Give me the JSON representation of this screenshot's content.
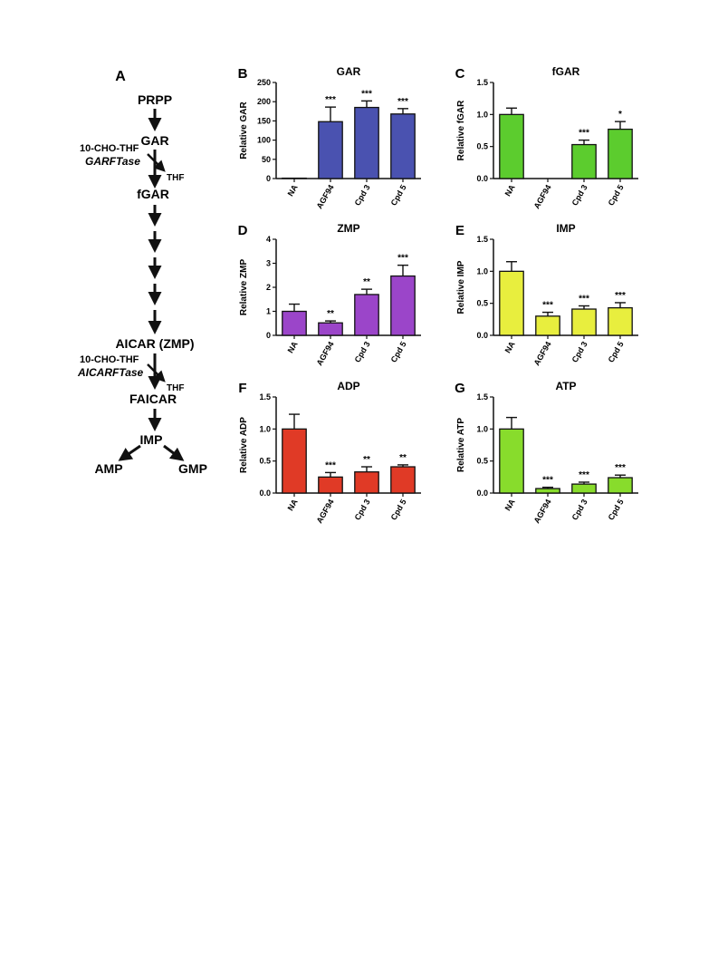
{
  "pathway": {
    "panel_label": "A",
    "nodes": [
      "PRPP",
      "GAR",
      "fGAR",
      "AICAR (ZMP)",
      "FAICAR",
      "IMP",
      "AMP",
      "GMP"
    ],
    "garftase_cofactor": "10-CHO-THF",
    "garftase_enzyme": "GARFTase",
    "garftase_product": "THF",
    "aicarftase_cofactor": "10-CHO-THF",
    "aicarftase_enzyme": "AICARFTase",
    "aicarftase_product": "THF"
  },
  "chart_data": [
    {
      "panel": "B",
      "type": "bar",
      "title": "GAR",
      "ylabel": "Relative GAR",
      "categories": [
        "NA",
        "AGF94",
        "Cpd 3",
        "Cpd 5"
      ],
      "values": [
        1,
        148,
        185,
        168
      ],
      "errors": [
        0,
        38,
        17,
        14
      ],
      "significance": [
        "",
        "***",
        "***",
        "***"
      ],
      "ylim": [
        0,
        250
      ],
      "yticks": [
        0,
        50,
        100,
        150,
        200,
        250
      ],
      "ytick_labels": [
        "0",
        "50",
        "100",
        "150",
        "200",
        "250"
      ],
      "color": "#4a52b0"
    },
    {
      "panel": "C",
      "type": "bar",
      "title": "fGAR",
      "ylabel": "Relative fGAR",
      "categories": [
        "NA",
        "AGF94",
        "Cpd 3",
        "Cpd 5"
      ],
      "values": [
        1.0,
        0,
        0.53,
        0.77
      ],
      "errors": [
        0.1,
        0,
        0.07,
        0.12
      ],
      "significance": [
        "",
        "",
        "***",
        "*"
      ],
      "ylim": [
        0,
        1.5
      ],
      "yticks": [
        0,
        0.5,
        1.0,
        1.5
      ],
      "ytick_labels": [
        "0.0",
        "0.5",
        "1.0",
        "1.5"
      ],
      "color": "#5ccc2e"
    },
    {
      "panel": "D",
      "type": "bar",
      "title": "ZMP",
      "ylabel": "Relative ZMP",
      "categories": [
        "NA",
        "AGF94",
        "Cpd 3",
        "Cpd 5"
      ],
      "values": [
        1.0,
        0.52,
        1.7,
        2.47
      ],
      "errors": [
        0.3,
        0.08,
        0.22,
        0.45
      ],
      "significance": [
        "",
        "**",
        "**",
        "***"
      ],
      "ylim": [
        0,
        4
      ],
      "yticks": [
        0,
        1,
        2,
        3,
        4
      ],
      "ytick_labels": [
        "0",
        "1",
        "2",
        "3",
        "4"
      ],
      "color": "#9b45c9"
    },
    {
      "panel": "E",
      "type": "bar",
      "title": "IMP",
      "ylabel": "Relative IMP",
      "categories": [
        "NA",
        "AGF94",
        "Cpd 3",
        "Cpd 5"
      ],
      "values": [
        1.0,
        0.3,
        0.41,
        0.43
      ],
      "errors": [
        0.15,
        0.06,
        0.05,
        0.08
      ],
      "significance": [
        "",
        "***",
        "***",
        "***"
      ],
      "ylim": [
        0,
        1.5
      ],
      "yticks": [
        0,
        0.5,
        1.0,
        1.5
      ],
      "ytick_labels": [
        "0.0",
        "0.5",
        "1.0",
        "1.5"
      ],
      "color": "#e8ee3e"
    },
    {
      "panel": "F",
      "type": "bar",
      "title": "ADP",
      "ylabel": "Relative ADP",
      "categories": [
        "NA",
        "AGF94",
        "Cpd 3",
        "Cpd 5"
      ],
      "values": [
        1.0,
        0.25,
        0.33,
        0.41
      ],
      "errors": [
        0.23,
        0.07,
        0.08,
        0.03
      ],
      "significance": [
        "",
        "***",
        "**",
        "**"
      ],
      "ylim": [
        0,
        1.5
      ],
      "yticks": [
        0,
        0.5,
        1.0,
        1.5
      ],
      "ytick_labels": [
        "0.0",
        "0.5",
        "1.0",
        "1.5"
      ],
      "color": "#e03a26"
    },
    {
      "panel": "G",
      "type": "bar",
      "title": "ATP",
      "ylabel": "Relative ATP",
      "categories": [
        "NA",
        "AGF94",
        "Cpd 3",
        "Cpd 5"
      ],
      "values": [
        1.0,
        0.07,
        0.14,
        0.24
      ],
      "errors": [
        0.18,
        0.02,
        0.03,
        0.04
      ],
      "significance": [
        "",
        "***",
        "***",
        "***"
      ],
      "ylim": [
        0,
        1.5
      ],
      "yticks": [
        0,
        0.5,
        1.0,
        1.5
      ],
      "ytick_labels": [
        "0.0",
        "0.5",
        "1.0",
        "1.5"
      ],
      "color": "#88dc2c"
    }
  ]
}
